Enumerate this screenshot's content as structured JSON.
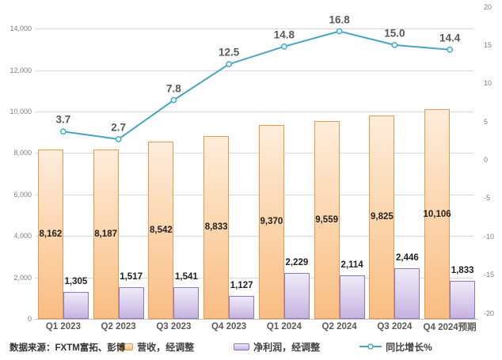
{
  "source_note": "数据来源：FXTM富拓、彭博",
  "colors": {
    "revenue_fill": "#FCD3A9",
    "revenue_border": "#E8994F",
    "profit_fill": "#D9CDEC",
    "profit_border": "#8E76BC",
    "line": "#45A6C2",
    "marker_fill": "#EAF4F8",
    "grid": "#D9D9D9",
    "value_label": "#1F1F1F",
    "growth_label": "#595959",
    "tick_label": "#7F7F7F"
  },
  "chart_data": {
    "type": "combo (bar + line)",
    "categories": [
      "Q1 2023",
      "Q2 2023",
      "Q3 2023",
      "Q4 2023",
      "Q1 2024",
      "Q2 2024",
      "Q3 2024",
      "Q4 2024预期"
    ],
    "series": [
      {
        "name": "营收，经调整",
        "type": "bar",
        "axis": "left",
        "values": [
          8162,
          8187,
          8542,
          8833,
          9370,
          9559,
          9825,
          10106
        ],
        "labels": [
          "8,162",
          "8,187",
          "8,542",
          "8,833",
          "9,370",
          "9,559",
          "9,825",
          "10,106"
        ]
      },
      {
        "name": "净利润，经调整",
        "type": "bar",
        "axis": "left",
        "values": [
          1305,
          1517,
          1541,
          1127,
          2229,
          2114,
          2446,
          1833
        ],
        "labels": [
          "1,305",
          "1,517",
          "1,541",
          "1,127",
          "2,229",
          "2,114",
          "2,446",
          "1,833"
        ]
      },
      {
        "name": "同比增长%",
        "type": "line",
        "axis": "right",
        "values": [
          3.7,
          2.7,
          7.8,
          12.5,
          14.8,
          16.8,
          15.0,
          14.4
        ],
        "labels": [
          "3.7",
          "2.7",
          "7.8",
          "12.5",
          "14.8",
          "16.8",
          "15.0",
          "14.4"
        ]
      }
    ],
    "left_axis": {
      "ticks": [
        "0",
        "2,000",
        "4,000",
        "6,000",
        "8,000",
        "10,000",
        "12,000",
        "14,000"
      ],
      "tick_values": [
        0,
        2000,
        4000,
        6000,
        8000,
        10000,
        12000,
        14000
      ],
      "min": 0,
      "max": 14000
    },
    "right_axis": {
      "ticks": [
        "20",
        "15",
        "10",
        "5",
        "0",
        "-5",
        "-10",
        "-15",
        "-20"
      ],
      "tick_values": [
        20,
        15,
        10,
        5,
        0,
        -5,
        -10,
        -15,
        -20
      ],
      "min": -20,
      "max": 20,
      "unit": "%"
    },
    "legend_position": "bottom",
    "grid": "horizontal"
  }
}
